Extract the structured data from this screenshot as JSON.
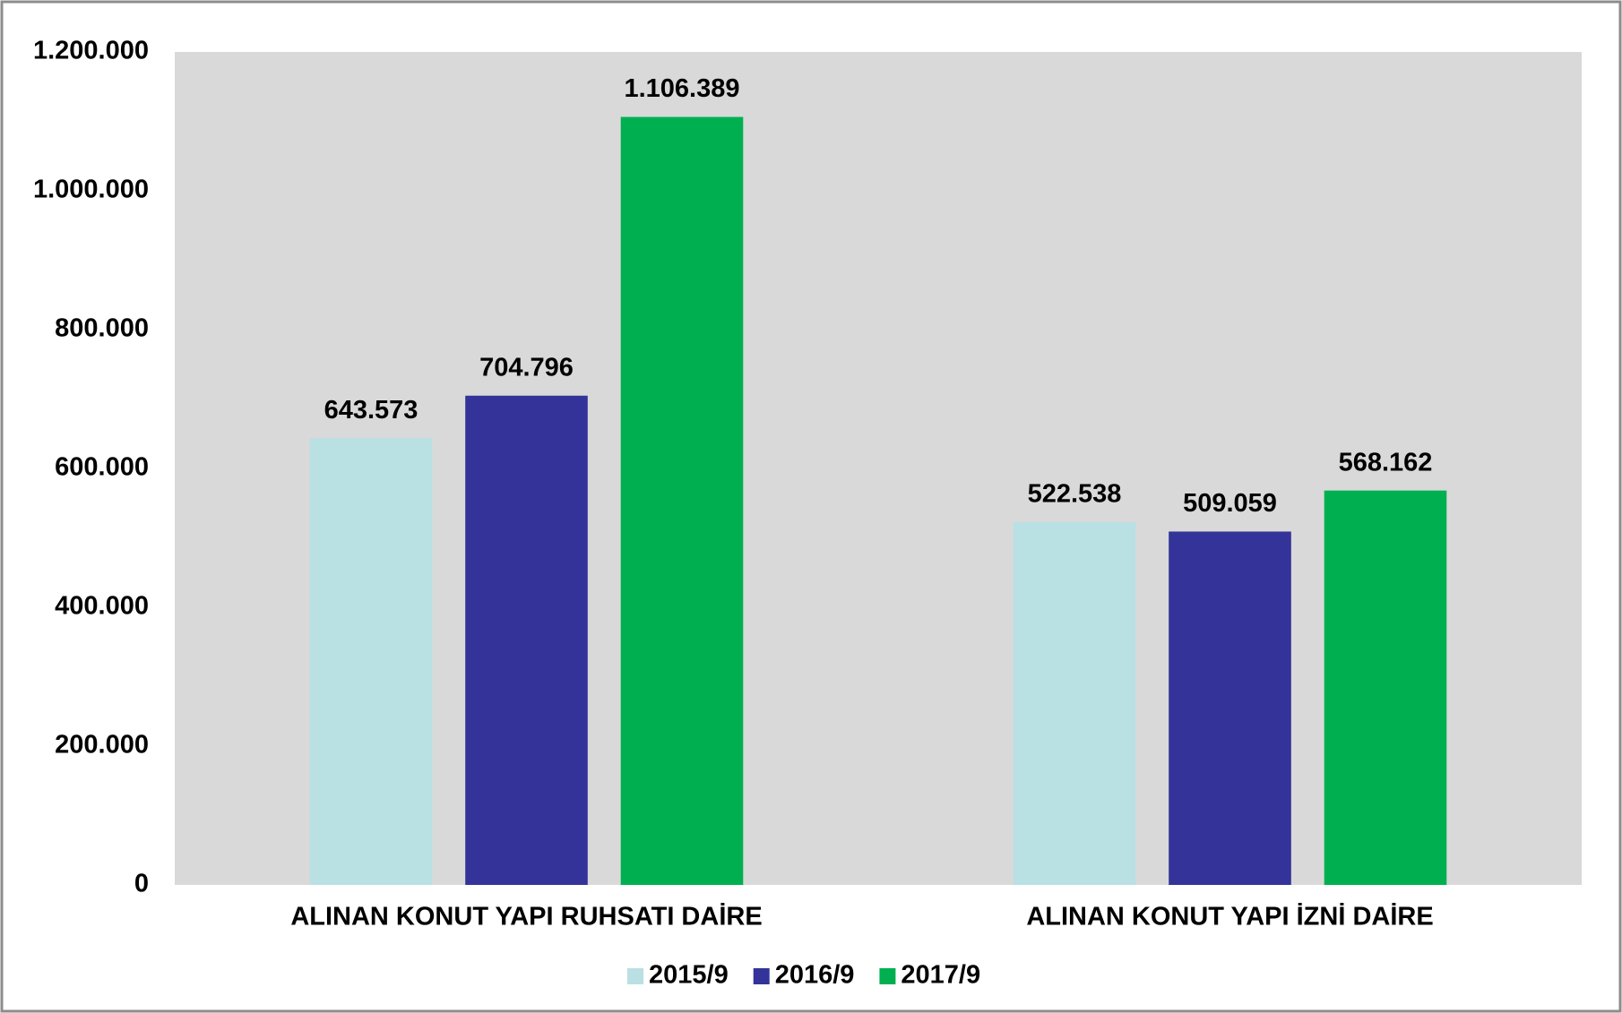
{
  "chart_data": {
    "type": "bar",
    "categories": [
      "ALINAN KONUT YAPI RUHSATI DAİRE",
      "ALINAN KONUT YAPI İZNİ DAİRE"
    ],
    "series": [
      {
        "name": "2015/9",
        "color": "#b9e0e3",
        "values": [
          643573,
          522538
        ],
        "value_labels": [
          "643.573",
          "522.538"
        ]
      },
      {
        "name": "2016/9",
        "color": "#333399",
        "values": [
          704796,
          509059
        ],
        "value_labels": [
          "704.796",
          "509.059"
        ]
      },
      {
        "name": "2017/9",
        "color": "#00b050",
        "values": [
          1106389,
          568162
        ],
        "value_labels": [
          "1.106.389",
          "568.162"
        ]
      }
    ],
    "ylim": [
      0,
      1200000
    ],
    "yticks": [
      0,
      {
        "value": 200000,
        "label": "200.000"
      },
      {
        "value": 400000,
        "label": "400.000"
      },
      {
        "value": 600000,
        "label": "600.000"
      },
      {
        "value": 800000,
        "label": "800.000"
      },
      {
        "value": 1000000,
        "label": "1.000.000"
      },
      {
        "value": 1200000,
        "label": "1.200.000"
      }
    ],
    "legend": "bottom",
    "plot_background": "#d9d9d9"
  }
}
